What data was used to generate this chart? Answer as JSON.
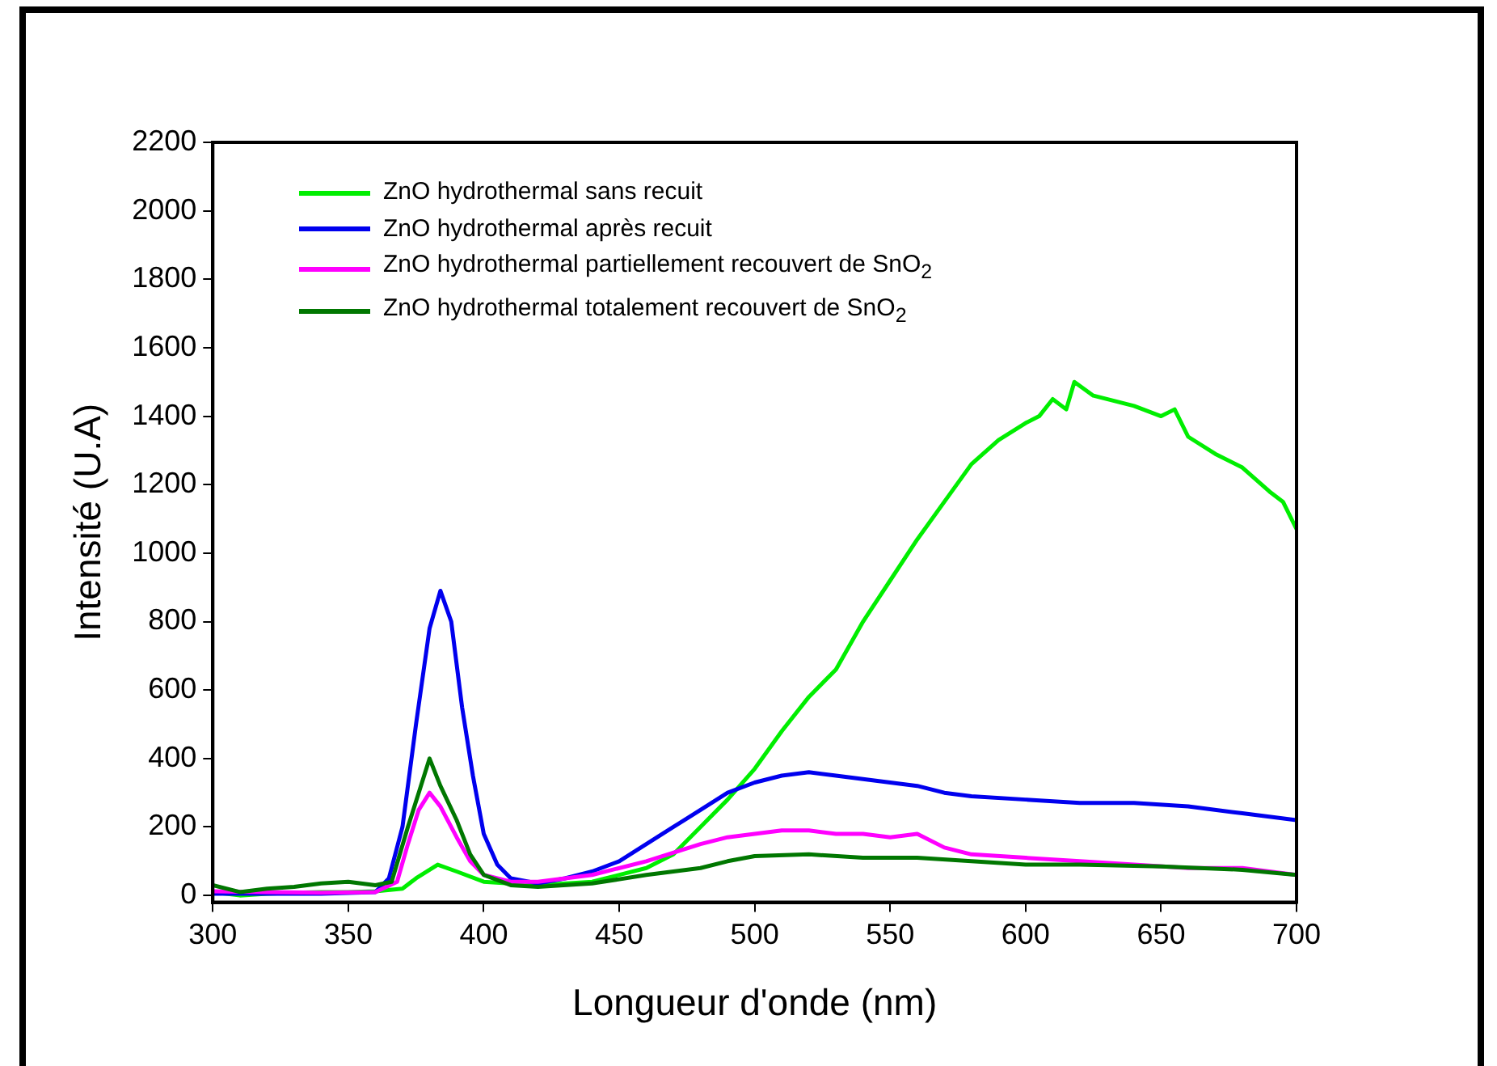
{
  "chart_data": {
    "type": "line",
    "xlabel": "Longueur d'onde (nm)",
    "ylabel": "Intensité (U.A)",
    "xlim": [
      300,
      700
    ],
    "xticks": [
      300,
      350,
      400,
      450,
      500,
      550,
      600,
      650,
      700
    ],
    "ylim": [
      -20,
      2200
    ],
    "yticks": [
      0,
      200,
      400,
      600,
      800,
      1000,
      1200,
      1400,
      1600,
      1800,
      2000,
      2200
    ],
    "legend": "top left",
    "grid": false,
    "marker": "none",
    "line_style": "solid",
    "series": [
      {
        "name": "ZnO hydrothermal sans recuit",
        "color": "#00ee00",
        "x": [
          300,
          310,
          320,
          330,
          340,
          350,
          360,
          370,
          375,
          383,
          390,
          400,
          420,
          440,
          460,
          470,
          480,
          490,
          500,
          510,
          520,
          530,
          540,
          550,
          560,
          570,
          580,
          590,
          600,
          605,
          610,
          615,
          618,
          625,
          630,
          640,
          650,
          655,
          660,
          670,
          680,
          690,
          695,
          700
        ],
        "values": [
          10,
          0,
          5,
          8,
          10,
          10,
          12,
          20,
          50,
          90,
          70,
          40,
          30,
          40,
          80,
          120,
          200,
          280,
          370,
          480,
          580,
          660,
          800,
          920,
          1040,
          1150,
          1260,
          1330,
          1380,
          1400,
          1450,
          1420,
          1500,
          1460,
          1450,
          1430,
          1400,
          1420,
          1340,
          1290,
          1250,
          1180,
          1150,
          1070
        ]
      },
      {
        "name": "ZnO hydrothermal après recuit",
        "color": "#0000ee",
        "x": [
          300,
          320,
          340,
          360,
          365,
          370,
          375,
          380,
          384,
          388,
          392,
          396,
          400,
          405,
          410,
          420,
          430,
          440,
          450,
          460,
          470,
          480,
          490,
          500,
          510,
          520,
          530,
          540,
          550,
          560,
          570,
          580,
          600,
          620,
          640,
          660,
          680,
          700
        ],
        "values": [
          5,
          5,
          5,
          10,
          50,
          200,
          500,
          780,
          890,
          800,
          550,
          350,
          180,
          90,
          50,
          35,
          50,
          70,
          100,
          150,
          200,
          250,
          300,
          330,
          350,
          360,
          350,
          340,
          330,
          320,
          300,
          290,
          280,
          270,
          270,
          260,
          240,
          220
        ]
      },
      {
        "name": "ZnO hydrothermal partiellement recouvert de SnO$_{2}$",
        "color": "#ff00ff",
        "x": [
          300,
          320,
          340,
          360,
          368,
          372,
          376,
          380,
          384,
          390,
          395,
          400,
          410,
          420,
          440,
          460,
          480,
          490,
          500,
          510,
          520,
          530,
          540,
          550,
          560,
          570,
          580,
          600,
          620,
          640,
          660,
          680,
          700
        ],
        "values": [
          12,
          10,
          8,
          10,
          40,
          150,
          250,
          300,
          260,
          170,
          100,
          60,
          40,
          40,
          60,
          100,
          150,
          170,
          180,
          190,
          190,
          180,
          180,
          170,
          180,
          140,
          120,
          110,
          100,
          90,
          80,
          80,
          60
        ]
      },
      {
        "name": "ZnO hydrothermal totalement recouvert de SnO$_{2}$",
        "color": "#007700",
        "x": [
          300,
          310,
          320,
          330,
          340,
          350,
          360,
          366,
          372,
          376,
          380,
          384,
          390,
          395,
          400,
          410,
          420,
          440,
          460,
          480,
          490,
          500,
          520,
          540,
          560,
          580,
          600,
          620,
          650,
          680,
          700
        ],
        "values": [
          30,
          10,
          20,
          25,
          35,
          40,
          30,
          40,
          200,
          300,
          400,
          320,
          220,
          120,
          60,
          30,
          25,
          35,
          60,
          80,
          100,
          115,
          120,
          110,
          110,
          100,
          90,
          90,
          85,
          75,
          60
        ]
      }
    ]
  }
}
